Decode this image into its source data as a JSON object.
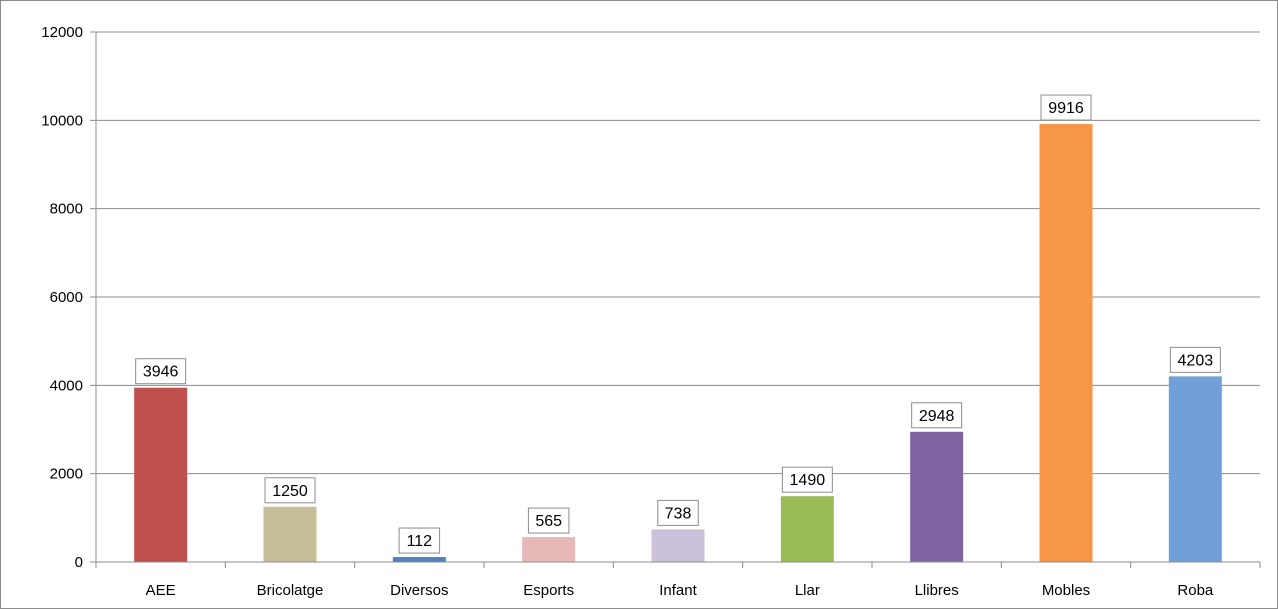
{
  "chart_data": {
    "type": "bar",
    "title": "",
    "xlabel": "",
    "ylabel": "",
    "categories": [
      "AEE",
      "Bricolatge",
      "Diversos",
      "Esports",
      "Infant",
      "Llar",
      "Llibres",
      "Mobles",
      "Roba"
    ],
    "values": [
      3946,
      1250,
      112,
      565,
      738,
      1490,
      2948,
      9916,
      4203
    ],
    "colors": [
      "#c0504d",
      "#c4bd97",
      "#4f81bd",
      "#e6b9b8",
      "#ccc1da",
      "#9bbb59",
      "#8064a2",
      "#f79646",
      "#71a0d8"
    ],
    "ylim": [
      0,
      12000
    ],
    "yticks": [
      0,
      2000,
      4000,
      6000,
      8000,
      10000,
      12000
    ],
    "grid": true,
    "legend": "none",
    "data_labels": true
  }
}
